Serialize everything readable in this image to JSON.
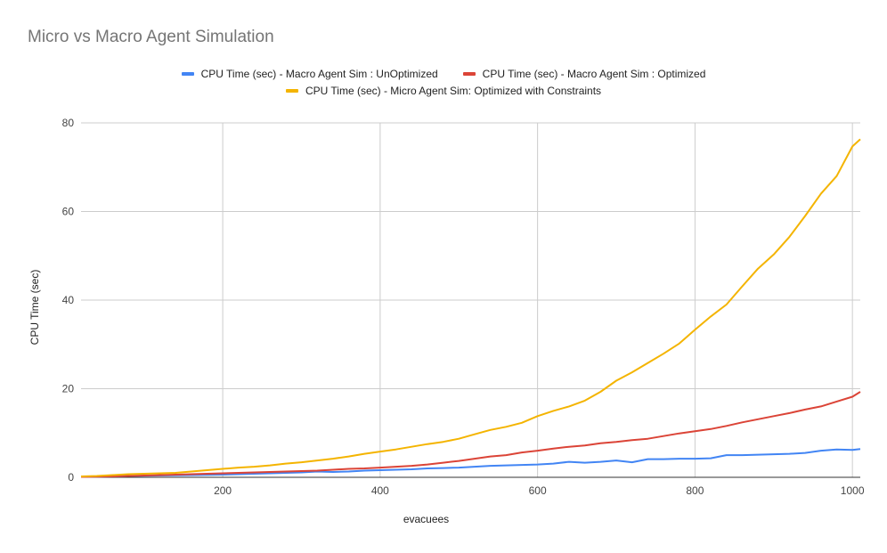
{
  "colors": {
    "background": "#ffffff",
    "grid": "#cccccc",
    "axis": "#333333",
    "text": "#222222",
    "title": "#757575"
  },
  "chart_data": {
    "type": "line",
    "title": "Micro vs Macro Agent Simulation",
    "xlabel": "evacuees",
    "ylabel": "CPU Time (sec)",
    "xlim": [
      20,
      1010
    ],
    "ylim": [
      0,
      80
    ],
    "x_ticks": [
      200,
      400,
      600,
      800,
      1000
    ],
    "y_ticks": [
      0,
      20,
      40,
      60,
      80
    ],
    "grid": true,
    "legend_position": "top",
    "x": [
      20,
      40,
      60,
      80,
      100,
      120,
      140,
      160,
      180,
      200,
      220,
      240,
      260,
      280,
      300,
      320,
      340,
      360,
      380,
      400,
      420,
      440,
      460,
      480,
      500,
      520,
      540,
      560,
      580,
      600,
      620,
      640,
      660,
      680,
      700,
      720,
      740,
      760,
      780,
      800,
      820,
      840,
      860,
      880,
      900,
      920,
      940,
      960,
      980,
      1000,
      1010
    ],
    "series": [
      {
        "name": "CPU Time (sec) - Macro Agent Sim : UnOptimized",
        "color": "#4285f4",
        "values": [
          0.1,
          0.15,
          0.2,
          0.3,
          0.35,
          0.4,
          0.45,
          0.5,
          0.55,
          0.6,
          0.7,
          0.8,
          0.9,
          1.0,
          1.1,
          1.3,
          1.2,
          1.3,
          1.5,
          1.6,
          1.7,
          1.8,
          2.0,
          2.1,
          2.2,
          2.4,
          2.6,
          2.7,
          2.8,
          2.9,
          3.1,
          3.5,
          3.3,
          3.5,
          3.8,
          3.4,
          4.1,
          4.1,
          4.2,
          4.2,
          4.3,
          5.0,
          5.0,
          5.1,
          5.2,
          5.3,
          5.5,
          6.0,
          6.3,
          6.2,
          6.4
        ]
      },
      {
        "name": "CPU Time (sec) - Macro Agent Sim : Optimized",
        "color": "#db4437",
        "values": [
          0.1,
          0.15,
          0.2,
          0.3,
          0.4,
          0.5,
          0.6,
          0.7,
          0.8,
          0.9,
          1.0,
          1.1,
          1.2,
          1.3,
          1.4,
          1.5,
          1.7,
          1.9,
          2.0,
          2.2,
          2.4,
          2.6,
          2.9,
          3.3,
          3.7,
          4.2,
          4.7,
          5.0,
          5.6,
          6.0,
          6.5,
          6.9,
          7.2,
          7.7,
          8.0,
          8.4,
          8.7,
          9.3,
          9.9,
          10.4,
          10.9,
          11.6,
          12.4,
          13.1,
          13.8,
          14.5,
          15.3,
          16.0,
          17.1,
          18.2,
          19.3
        ]
      },
      {
        "name": "CPU Time (sec) - Micro Agent Sim: Optimized with Constraints",
        "color": "#f4b400",
        "values": [
          0.2,
          0.3,
          0.5,
          0.7,
          0.8,
          0.9,
          1.0,
          1.3,
          1.6,
          1.9,
          2.2,
          2.4,
          2.7,
          3.1,
          3.4,
          3.8,
          4.2,
          4.7,
          5.3,
          5.8,
          6.3,
          6.9,
          7.5,
          8.0,
          8.7,
          9.7,
          10.7,
          11.4,
          12.3,
          13.8,
          15.0,
          16.0,
          17.3,
          19.3,
          21.8,
          23.7,
          25.8,
          27.9,
          30.2,
          33.3,
          36.3,
          39.0,
          43.1,
          47.1,
          50.3,
          54.3,
          59.0,
          64.0,
          68.0,
          74.7,
          76.3
        ]
      }
    ]
  }
}
